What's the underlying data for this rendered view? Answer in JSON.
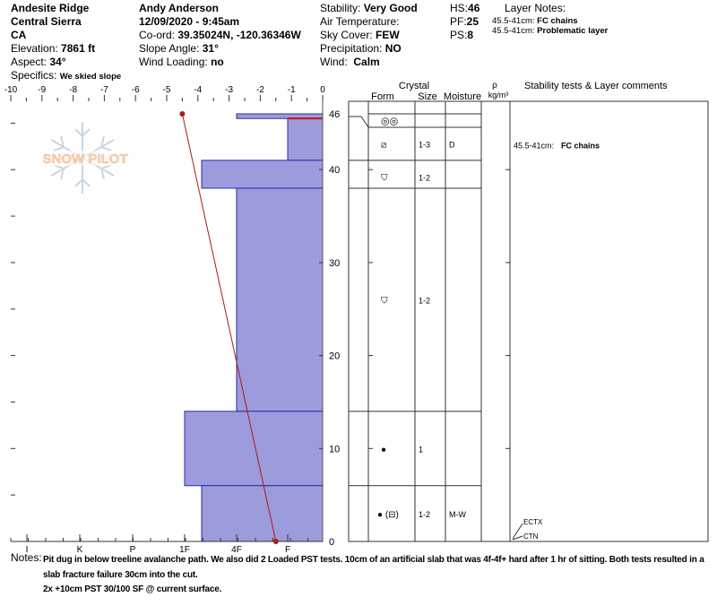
{
  "header": {
    "location": "Andesite Ridge",
    "range": "Central Sierra",
    "state": "CA",
    "elevation_label": "Elevation:",
    "elevation": "7861 ft",
    "aspect_label": "Aspect:",
    "aspect": "34°",
    "specifics_label": "Specifics:",
    "specifics": "We skied slope",
    "observer": "Andy Anderson",
    "datetime": "12/09/2020 - 9:45am",
    "coord_label": "Co-ord:",
    "coord": "39.35024N, -120.36346W",
    "slope_label": "Slope Angle:",
    "slope": "31°",
    "wind_loading_label": "Wind Loading:",
    "wind_loading": "no",
    "stability_label": "Stability:",
    "stability": "Very Good",
    "air_temp_label": "Air Temperature:",
    "sky_label": "Sky Cover:",
    "sky": "FEW",
    "precip_label": "Precipitation:",
    "precip": "NO",
    "wind_label": "Wind:",
    "wind": "Calm",
    "hs_label": "HS:",
    "hs": "46",
    "pf_label": "PF:",
    "pf": "25",
    "ps_label": "PS:",
    "ps": "8",
    "layer_notes_title": "Layer Notes:",
    "layer_notes": [
      {
        "range": "45.5-41cm:",
        "note": "FC chains"
      },
      {
        "range": "45.5-41cm:",
        "note": "Problematic layer"
      }
    ]
  },
  "logo": {
    "text": "SNOW PILOT"
  },
  "table_headers": {
    "crystal": "Crystal",
    "form": "Form",
    "size": "Size",
    "moisture": "Moisture",
    "rho": "ρ",
    "density_unit": "kg/m³",
    "comments": "Stability tests & Layer comments"
  },
  "chart_data": {
    "type": "snow-profile",
    "temperature_axis": {
      "ticks": [
        "-10",
        "-9",
        "-8",
        "-7",
        "-6",
        "-5",
        "-4",
        "-3",
        "-2",
        "-1",
        "0"
      ],
      "range": [
        -10,
        0
      ]
    },
    "height_axis": {
      "ticks": [
        "0",
        "10",
        "20",
        "30",
        "40",
        "46"
      ],
      "range": [
        0,
        46
      ]
    },
    "hardness_axis": {
      "ticks": [
        "I",
        "K",
        "P",
        "1F",
        "4F",
        "F"
      ]
    },
    "colors": {
      "hardness_fill": "#9c9cdc",
      "hardness_stroke": "#2a2aa8",
      "temperature": "#b01818",
      "problematic": "#cc1111"
    },
    "layers": [
      {
        "top": 46,
        "bottom": 45.5,
        "hardness": "4F",
        "form": "◎◎",
        "size": "",
        "moisture": "",
        "comment": ""
      },
      {
        "top": 45.5,
        "bottom": 41,
        "hardness": "F",
        "form": "⧄",
        "size": "1-3",
        "moisture": "D",
        "comment_range": "45.5-41cm:",
        "comment": "FC chains"
      },
      {
        "top": 41,
        "bottom": 38,
        "hardness": "1F-",
        "form": "⛉",
        "size": "1-2",
        "moisture": "",
        "comment": ""
      },
      {
        "top": 38,
        "bottom": 14,
        "hardness": "4F",
        "form": "⛉",
        "size": "1-2",
        "moisture": "",
        "comment": ""
      },
      {
        "top": 14,
        "bottom": 6,
        "hardness": "1F",
        "form": "●",
        "size": "1",
        "moisture": "",
        "comment": ""
      },
      {
        "top": 6,
        "bottom": 0,
        "hardness": "1F-",
        "form": "● (⊟)",
        "size": "1-2",
        "moisture": "M-W",
        "comment": ""
      }
    ],
    "problematic_layer_height": 45.5,
    "temperature_profile": [
      {
        "height": 46,
        "temp": -4.5
      },
      {
        "height": 0,
        "temp": -1.5
      }
    ],
    "stability_tests": [
      {
        "label": "ECTX",
        "height": 0
      },
      {
        "label": "CTN",
        "height": 0
      }
    ]
  },
  "notes": {
    "label": "Notes:",
    "lines": [
      "Pit dug in below treeline avalanche path. We also did 2 Loaded PST tests. 10cm of an artificial slab that was 4f-4f+ hard after 1 hr of sitting. Both tests resulted in a slab fracture failure 30cm into the cut.",
      "2x +10cm PST 30/100 SF @ current surface."
    ]
  }
}
